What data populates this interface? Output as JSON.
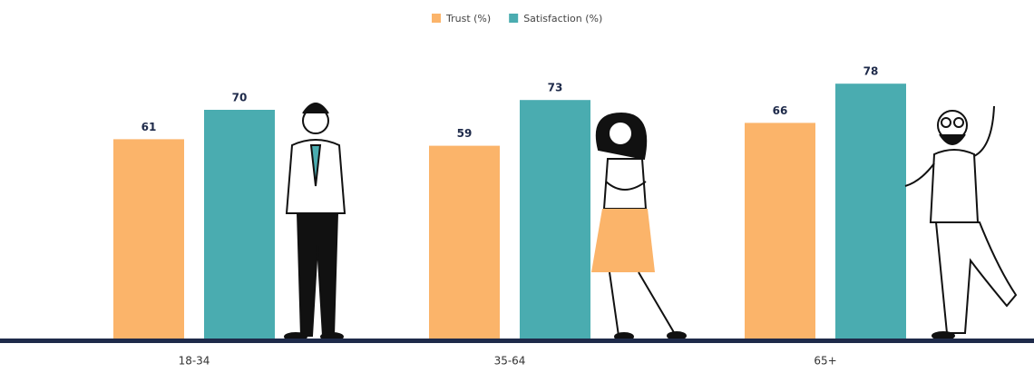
{
  "chart_data": {
    "type": "bar",
    "categories": [
      "18-34",
      "35-64",
      "65+"
    ],
    "series": [
      {
        "name": "Trust (%)",
        "color": "#fbb46a",
        "values": [
          61,
          59,
          66
        ]
      },
      {
        "name": "Satisfaction (%)",
        "color": "#4aacb0",
        "values": [
          70,
          73,
          78
        ]
      }
    ]
  }
}
